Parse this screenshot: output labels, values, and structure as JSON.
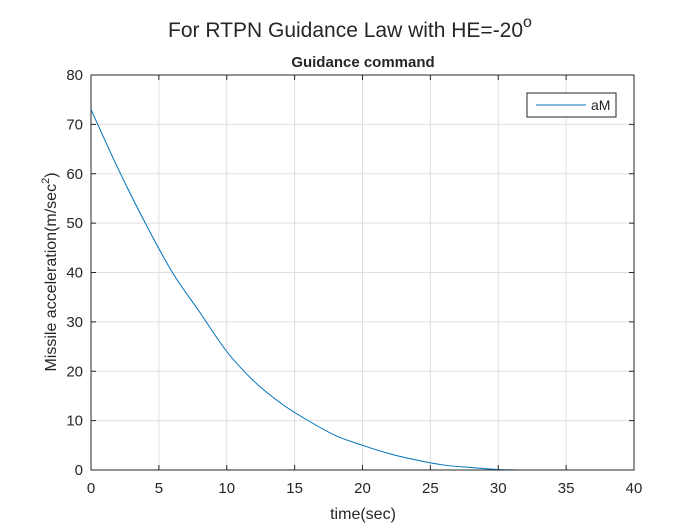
{
  "figure": {
    "suptitle": "For RTPN Guidance Law with HE=-20",
    "suptitle_superscript": "o"
  },
  "chart_data": {
    "type": "line",
    "title": "Guidance command",
    "xlabel": "time(sec)",
    "ylabel": "Missile acceleration(m/sec",
    "ylabel_superscript": "2",
    "ylabel_suffix": ")",
    "xlim": [
      0,
      40
    ],
    "ylim": [
      0,
      80
    ],
    "xticks": [
      0,
      5,
      10,
      15,
      20,
      25,
      30,
      35,
      40
    ],
    "yticks": [
      0,
      10,
      20,
      30,
      40,
      50,
      60,
      70,
      80
    ],
    "grid": true,
    "legend_position": "top-right",
    "series": [
      {
        "name": "aM",
        "color": "#0072BD",
        "x": [
          0,
          2,
          4,
          6,
          8,
          10,
          12,
          14,
          16,
          18,
          20,
          22,
          24,
          26,
          28,
          30,
          32,
          34,
          36
        ],
        "y": [
          73,
          61,
          50,
          40,
          32,
          24,
          18,
          13.5,
          10,
          7,
          5,
          3.3,
          2,
          1,
          0.5,
          0.1,
          0,
          0,
          0
        ]
      }
    ]
  }
}
